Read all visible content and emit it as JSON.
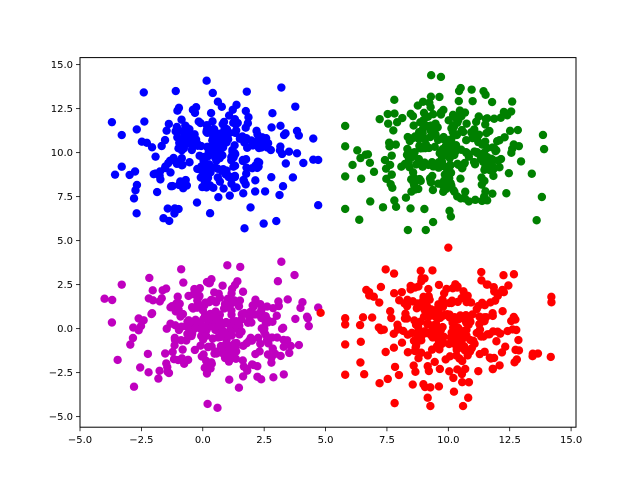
{
  "chart_data": {
    "type": "scatter",
    "title": "",
    "xlabel": "",
    "ylabel": "",
    "xlim": [
      -5.0,
      15.2
    ],
    "ylim": [
      -5.6,
      15.4
    ],
    "x_ticks": [
      -5.0,
      -2.5,
      0.0,
      2.5,
      5.0,
      7.5,
      10.0,
      12.5,
      15.0
    ],
    "y_ticks": [
      -5.0,
      -2.5,
      0.0,
      2.5,
      5.0,
      7.5,
      10.0,
      12.5,
      15.0
    ],
    "x_tick_labels": [
      "−5.0",
      "−2.5",
      "0.0",
      "2.5",
      "5.0",
      "7.5",
      "10.0",
      "12.5",
      "15.0"
    ],
    "y_tick_labels": [
      "−5.0",
      "−2.5",
      "0.0",
      "2.5",
      "5.0",
      "7.5",
      "10.0",
      "12.5",
      "15.0"
    ],
    "grid": false,
    "legend": "none",
    "series": [
      {
        "color": "#0000ff",
        "center": [
          0.5,
          10.0
        ],
        "spread": [
          1.6,
          1.5
        ],
        "count": 300,
        "points": [
          [
            -3.3,
            9.2
          ],
          [
            4.5,
            10.8
          ],
          [
            4.5,
            9.6
          ],
          [
            1.7,
            5.7
          ],
          [
            -1.1,
            13.5
          ],
          [
            -2.8,
            7.4
          ],
          [
            3.2,
            13.7
          ],
          [
            -3.3,
            11.0
          ]
        ]
      },
      {
        "color": "#008000",
        "center": [
          10.0,
          10.0
        ],
        "spread": [
          1.6,
          1.5
        ],
        "count": 300,
        "points": [
          [
            9.7,
            14.3
          ],
          [
            5.8,
            6.8
          ],
          [
            13.9,
            10.2
          ],
          [
            13.4,
            8.8
          ],
          [
            12.6,
            12.9
          ],
          [
            6.1,
            9.3
          ],
          [
            7.8,
            13.0
          ]
        ]
      },
      {
        "color": "#bf00bf",
        "center": [
          0.5,
          0.0
        ],
        "spread": [
          1.6,
          1.5
        ],
        "count": 300,
        "points": [
          [
            -4.0,
            1.7
          ],
          [
            3.2,
            3.8
          ],
          [
            0.6,
            -4.5
          ],
          [
            -3.3,
            2.5
          ],
          [
            3.3,
            -2.6
          ],
          [
            -2.8,
            -3.3
          ],
          [
            1.0,
            3.6
          ]
        ]
      },
      {
        "color": "#ff0000",
        "center": [
          10.0,
          0.0
        ],
        "spread": [
          1.6,
          1.5
        ],
        "count": 300,
        "points": [
          [
            14.2,
            1.5
          ],
          [
            4.8,
            0.9
          ],
          [
            10.0,
            4.6
          ],
          [
            10.6,
            -4.4
          ],
          [
            5.8,
            -0.9
          ],
          [
            7.2,
            -3.1
          ],
          [
            12.2,
            2.2
          ]
        ]
      }
    ]
  }
}
